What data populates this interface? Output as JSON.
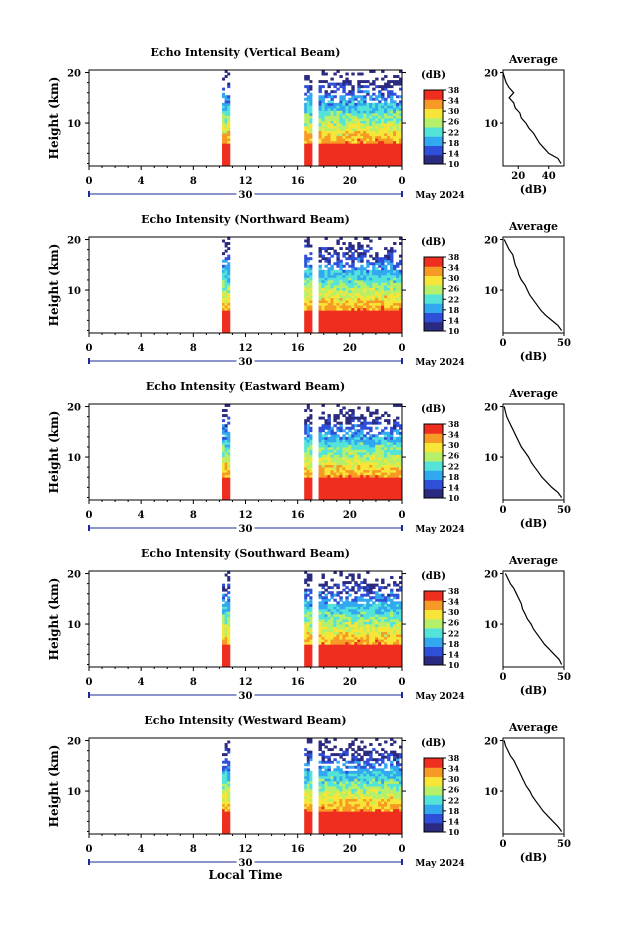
{
  "chart_data": {
    "type": "heatmap",
    "shared": {
      "xlabel": "Local Time",
      "date_label": "May 2024",
      "day_label": "30",
      "x_ticks": [
        "0",
        "4",
        "8",
        "12",
        "16",
        "20",
        "0"
      ],
      "x_range_hours": [
        0,
        24
      ],
      "y_ticks": [
        "20",
        "10"
      ],
      "y_range_km": [
        1.5,
        20.5
      ],
      "ylabel": "Height (km)",
      "colorbar_unit": "(dB)",
      "colorbar_ticks": [
        "38",
        "34",
        "30",
        "26",
        "22",
        "18",
        "14",
        "10"
      ],
      "colorbar_range_db": [
        10,
        38
      ],
      "colormap": [
        "#2a2a80",
        "#2f4fd8",
        "#31a8f0",
        "#54e3d8",
        "#b6f06a",
        "#f7e637",
        "#f79a25",
        "#ef2e20"
      ],
      "average_title": "Average",
      "average_xlabel": "(dB)",
      "data_segments_hours": [
        [
          10.2,
          10.8
        ],
        [
          16.5,
          17.1
        ],
        [
          17.6,
          24.0
        ]
      ],
      "heights_km": [
        2,
        3,
        4,
        5,
        6,
        7,
        8,
        9,
        10,
        11,
        12,
        13,
        14,
        15,
        16,
        17,
        18,
        19,
        20
      ]
    },
    "panels": [
      {
        "title": "Echo Intensity (Vertical Beam)",
        "avg_x_ticks": [
          "20",
          "40"
        ],
        "avg_x_range": [
          10,
          50
        ],
        "avg_profile_db": [
          48,
          46,
          40,
          37,
          34,
          32,
          30,
          27,
          25,
          22,
          21,
          18,
          17,
          14,
          17,
          14,
          12,
          11,
          10
        ]
      },
      {
        "title": "Echo Intensity (Northward Beam)",
        "avg_x_ticks": [
          "0",
          "50"
        ],
        "avg_x_range": [
          0,
          50
        ],
        "avg_profile_db": [
          48,
          45,
          40,
          35,
          31,
          28,
          25,
          22,
          20,
          18,
          15,
          13,
          12,
          10,
          9,
          8,
          5,
          3,
          1
        ]
      },
      {
        "title": "Echo Intensity (Eastward Beam)",
        "avg_x_ticks": [
          "0",
          "50"
        ],
        "avg_x_range": [
          0,
          50
        ],
        "avg_profile_db": [
          48,
          45,
          40,
          36,
          32,
          29,
          26,
          23,
          21,
          18,
          15,
          13,
          11,
          9,
          7,
          5,
          3,
          2,
          1
        ]
      },
      {
        "title": "Echo Intensity (Southward Beam)",
        "avg_x_ticks": [
          "0",
          "50"
        ],
        "avg_x_range": [
          0,
          50
        ],
        "avg_profile_db": [
          48,
          46,
          42,
          38,
          34,
          31,
          28,
          25,
          23,
          20,
          18,
          16,
          15,
          13,
          11,
          9,
          6,
          4,
          2
        ]
      },
      {
        "title": "Echo Intensity (Westward Beam)",
        "avg_x_ticks": [
          "0",
          "50"
        ],
        "avg_x_range": [
          0,
          50
        ],
        "avg_profile_db": [
          48,
          45,
          41,
          37,
          33,
          30,
          27,
          24,
          22,
          19,
          17,
          15,
          13,
          11,
          9,
          6,
          4,
          2,
          1
        ]
      }
    ]
  }
}
